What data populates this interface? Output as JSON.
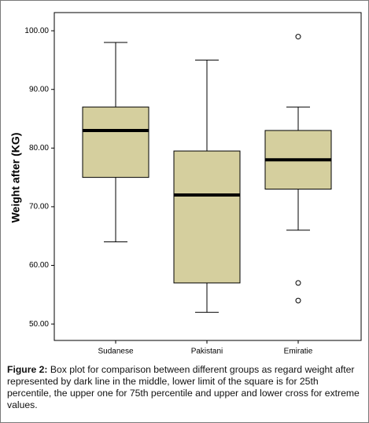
{
  "chart_data": {
    "type": "box",
    "y_label": "Weight after (KG)",
    "categories": [
      "Sudanese",
      "Pakistani",
      "Emiratie"
    ],
    "boxes": [
      {
        "whisker_low": 64,
        "q1": 75,
        "median": 83,
        "q3": 87,
        "whisker_high": 98,
        "outliers": []
      },
      {
        "whisker_low": 52,
        "q1": 57,
        "median": 72,
        "q3": 79.5,
        "whisker_high": 95,
        "outliers": []
      },
      {
        "whisker_low": 66,
        "q1": 73,
        "median": 78,
        "q3": 83,
        "whisker_high": 87,
        "outliers": [
          99,
          57,
          54
        ]
      }
    ],
    "color": "#d5cf9e",
    "ylim": [
      47.2,
      103.1
    ],
    "yticks": [
      {
        "value": 50,
        "label": "50.00"
      },
      {
        "value": 60,
        "label": "60.00"
      },
      {
        "value": 70,
        "label": "70.00"
      },
      {
        "value": 80,
        "label": "80.00"
      },
      {
        "value": 90,
        "label": "90.00"
      },
      {
        "value": 100,
        "label": "100.00"
      }
    ]
  },
  "caption": {
    "label": "Figure 2:",
    "text": " Box plot for comparison between different groups as regard weight after represented by dark line in the middle, lower limit of the square is for 25th percentile, the upper one for 75th percentile and upper and lower cross for extreme values."
  }
}
